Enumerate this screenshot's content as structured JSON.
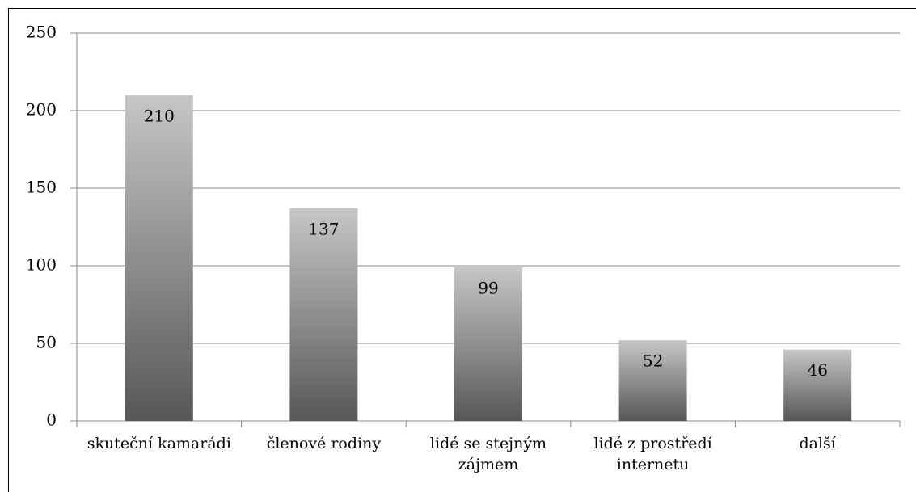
{
  "chart_data": {
    "type": "bar",
    "categories": [
      "skuteční kamarádi",
      "členové rodiny",
      "lidé se stejným zájmem",
      "lidé z prostředí internetu",
      "další"
    ],
    "values": [
      210,
      137,
      99,
      52,
      46
    ],
    "gradient": [
      "#c6c6c6",
      "#575757"
    ],
    "ylim": [
      0,
      250
    ],
    "yticks": [
      0,
      50,
      100,
      150,
      200,
      250
    ],
    "grid": true
  }
}
